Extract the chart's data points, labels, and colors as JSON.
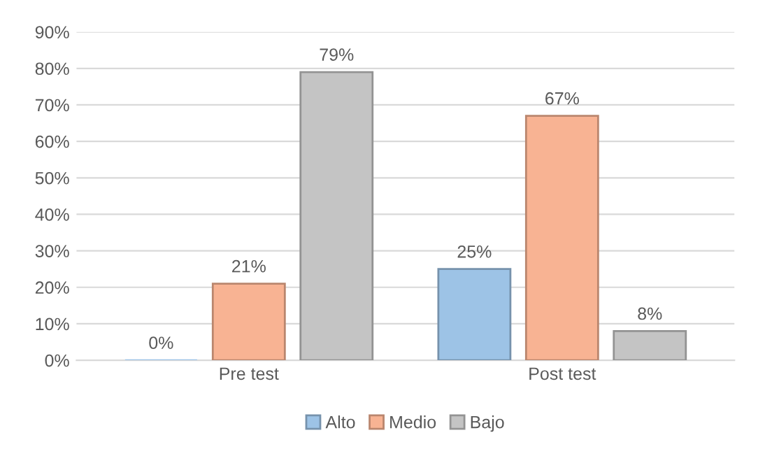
{
  "chart_data": {
    "type": "bar",
    "categories": [
      "Pre test",
      "Post test"
    ],
    "series": [
      {
        "name": "Alto",
        "color": "#9dc3e6",
        "values": [
          0,
          25
        ],
        "value_labels": [
          "0%",
          "25%"
        ]
      },
      {
        "name": "Medio",
        "color": "#f8b393",
        "values": [
          21,
          67
        ],
        "value_labels": [
          "21%",
          "67%"
        ]
      },
      {
        "name": "Bajo",
        "color": "#c4c4c4",
        "values": [
          79,
          8
        ],
        "value_labels": [
          "79%",
          "8%"
        ]
      }
    ],
    "ylim": [
      0,
      90
    ],
    "yticks": [
      {
        "value": 0,
        "label": "0%"
      },
      {
        "value": 10,
        "label": "10%"
      },
      {
        "value": 20,
        "label": "20%"
      },
      {
        "value": 30,
        "label": "30%"
      },
      {
        "value": 40,
        "label": "40%"
      },
      {
        "value": 50,
        "label": "50%"
      },
      {
        "value": 60,
        "label": "60%"
      },
      {
        "value": 70,
        "label": "70%"
      },
      {
        "value": 80,
        "label": "80%"
      },
      {
        "value": 90,
        "label": "90%"
      }
    ],
    "grid": "y",
    "legend": "bottom"
  }
}
